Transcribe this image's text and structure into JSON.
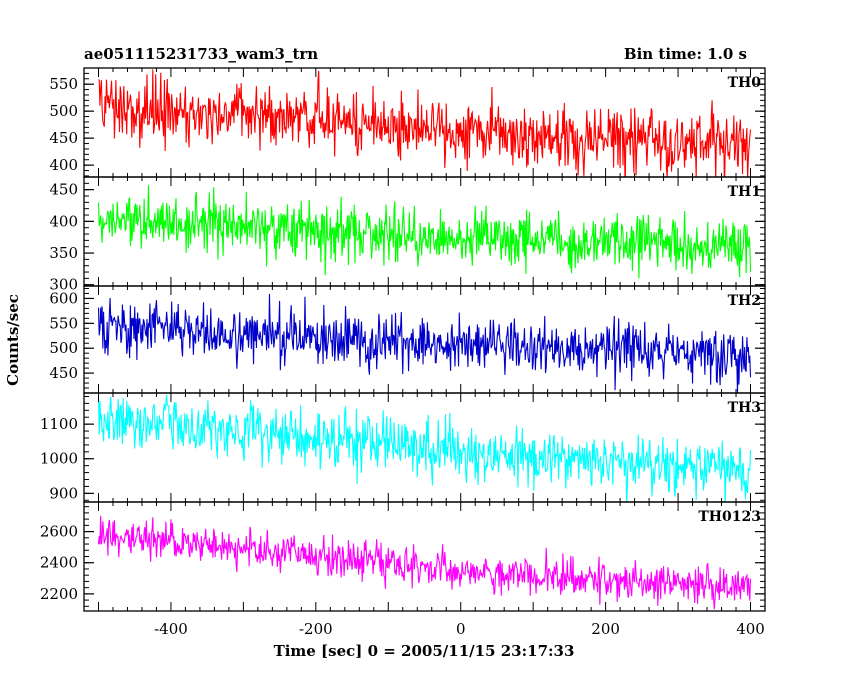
{
  "chart_data": {
    "type": "line",
    "title": "ae051115231733_wam3_trn",
    "subtitle": "Bin time: 1.0 s",
    "xlabel": "Time [sec] 0 = 2005/11/15 23:17:33",
    "ylabel": "Counts/sec",
    "xlim": [
      -520,
      420
    ],
    "xticks": [
      -400,
      -200,
      0,
      200,
      400
    ],
    "x_range": [
      -500,
      400
    ],
    "x_step": 1,
    "grid": false,
    "legend": "none",
    "panels": [
      {
        "name": "TH0",
        "color": "#ff0000",
        "ylim": [
          378,
          580
        ],
        "yticks": [
          400,
          450,
          500,
          550
        ],
        "trend": [
          [
            -500,
            508
          ],
          [
            -300,
            492
          ],
          [
            -100,
            472
          ],
          [
            100,
            455
          ],
          [
            400,
            438
          ]
        ],
        "noise_sd": 28
      },
      {
        "name": "TH1",
        "color": "#00ff00",
        "ylim": [
          298,
          470
        ],
        "yticks": [
          300,
          350,
          400,
          450
        ],
        "trend": [
          [
            -500,
            405
          ],
          [
            -300,
            393
          ],
          [
            -100,
            378
          ],
          [
            100,
            368
          ],
          [
            400,
            360
          ]
        ],
        "noise_sd": 22
      },
      {
        "name": "TH2",
        "color": "#0000cc",
        "ylim": [
          410,
          625
        ],
        "yticks": [
          450,
          500,
          550,
          600
        ],
        "trend": [
          [
            -500,
            545
          ],
          [
            -300,
            528
          ],
          [
            -100,
            512
          ],
          [
            100,
            500
          ],
          [
            400,
            488
          ]
        ],
        "noise_sd": 27
      },
      {
        "name": "TH3",
        "color": "#00ffff",
        "ylim": [
          875,
          1190
        ],
        "yticks": [
          900,
          1000,
          1100
        ],
        "trend": [
          [
            -500,
            1115
          ],
          [
            -300,
            1080
          ],
          [
            -100,
            1040
          ],
          [
            100,
            1000
          ],
          [
            400,
            965
          ]
        ],
        "noise_sd": 40
      },
      {
        "name": "TH0123",
        "color": "#ff00ff",
        "ylim": [
          2090,
          2790
        ],
        "yticks": [
          2200,
          2400,
          2600
        ],
        "trend": [
          [
            -500,
            2590
          ],
          [
            -300,
            2490
          ],
          [
            -100,
            2400
          ],
          [
            100,
            2310
          ],
          [
            400,
            2240
          ]
        ],
        "noise_sd": 60
      }
    ]
  }
}
